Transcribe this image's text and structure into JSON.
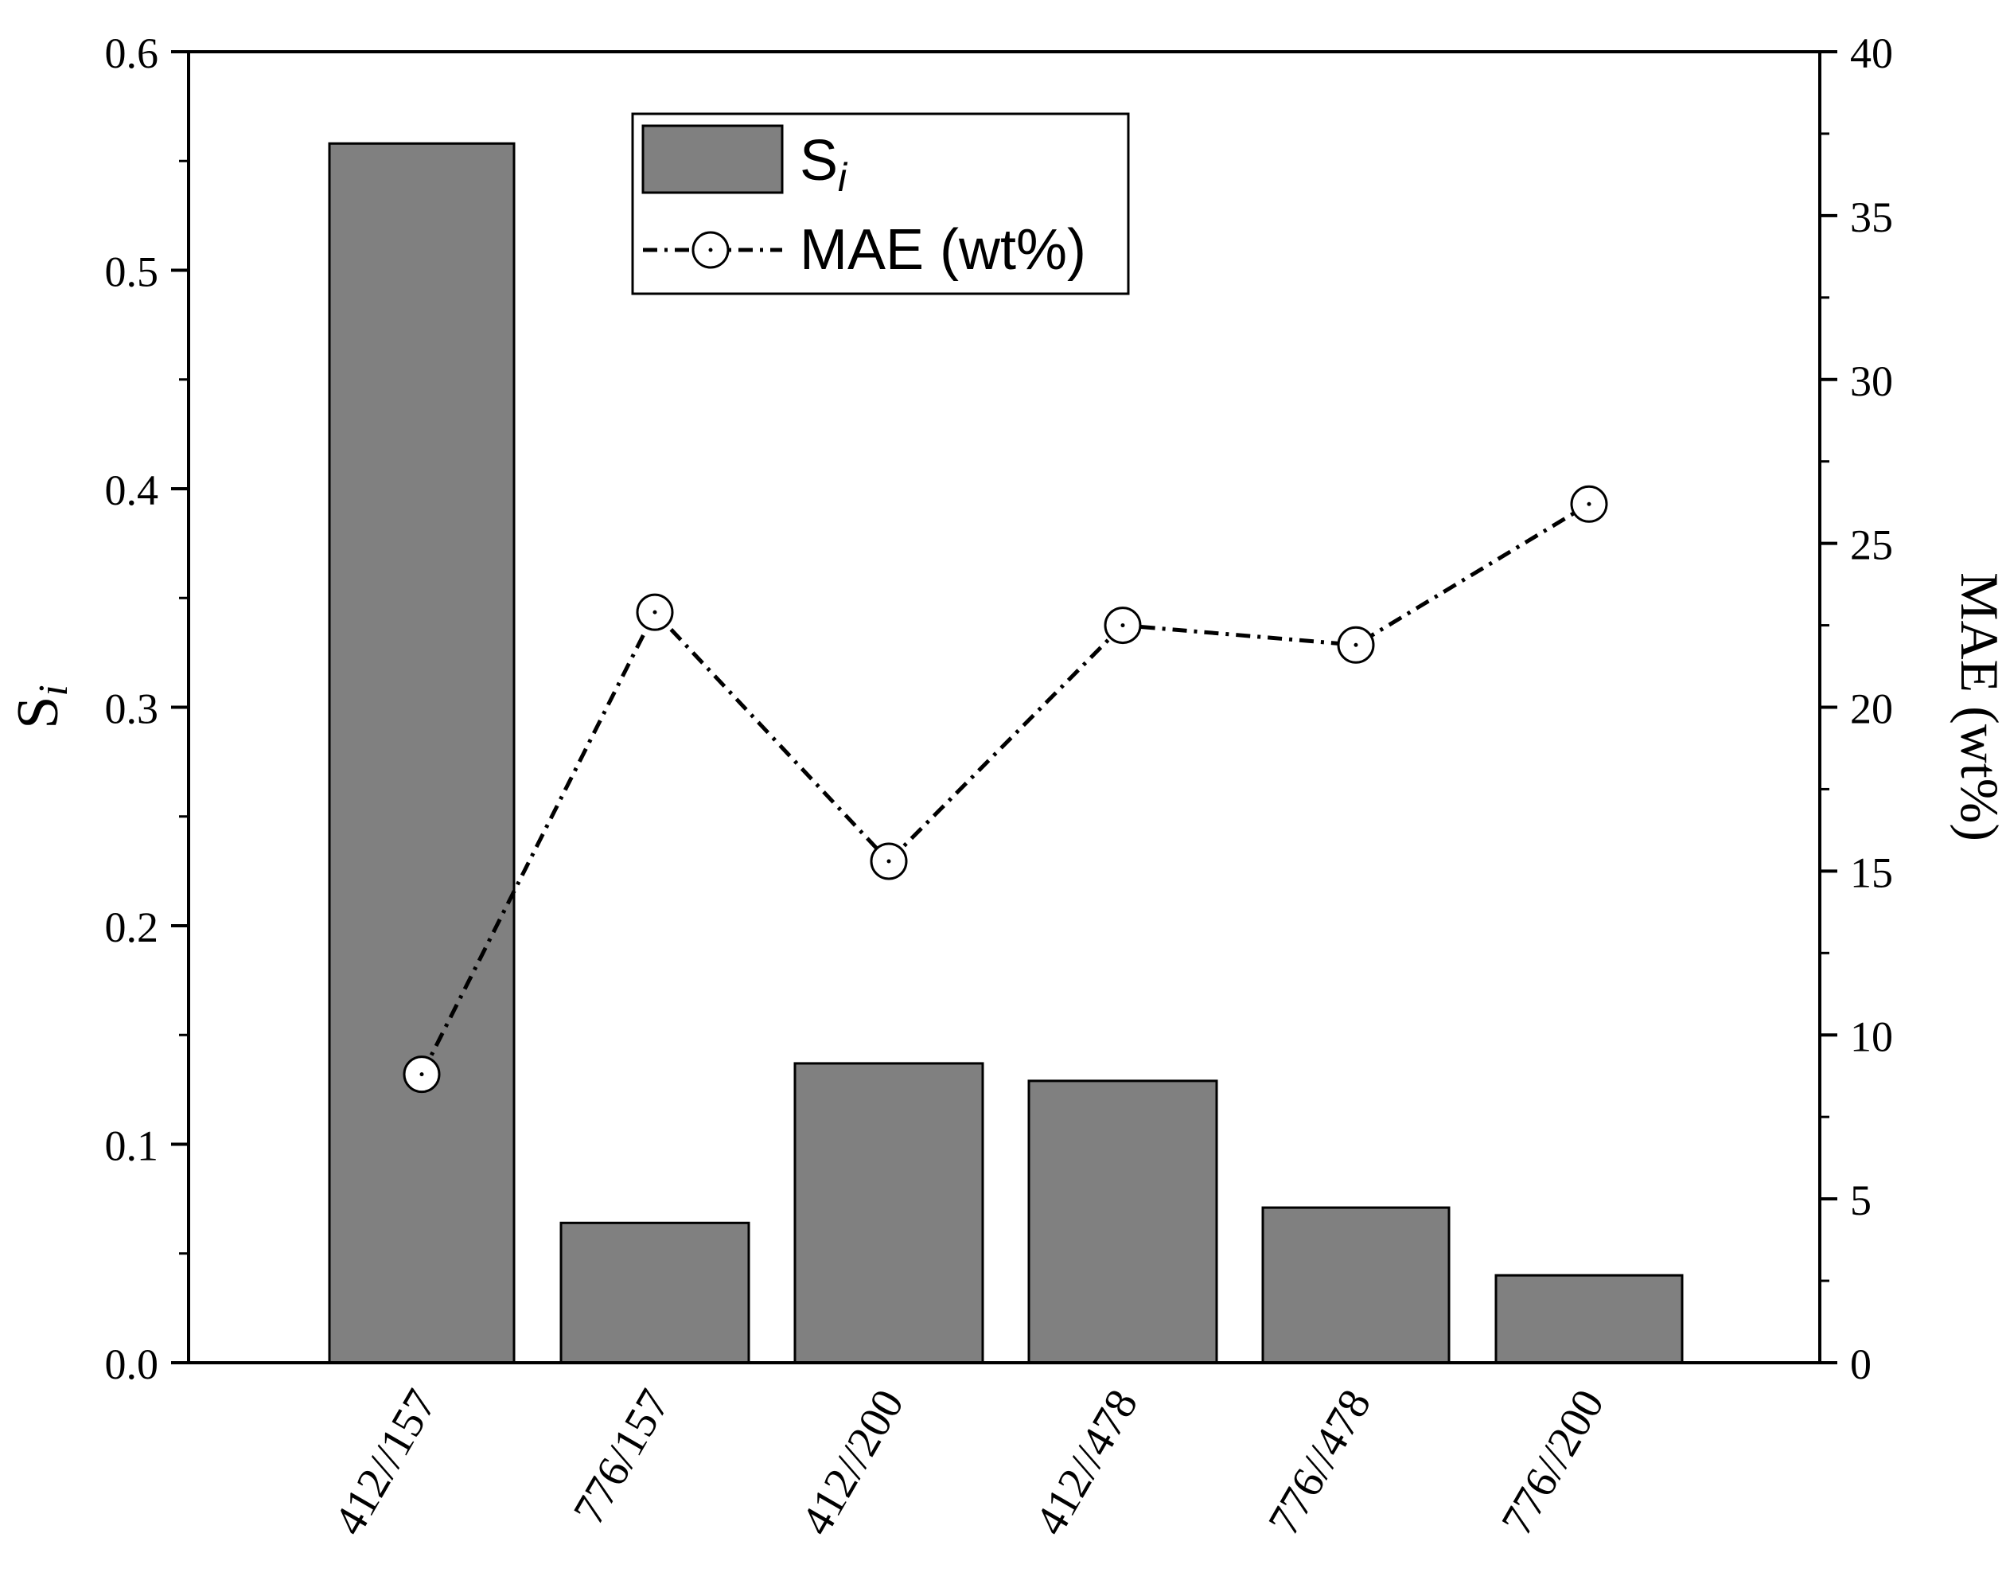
{
  "chart_data": {
    "type": "bar+line",
    "categories": [
      "412//157",
      "776/157",
      "412//200",
      "412//478",
      "776//478",
      "776//200"
    ],
    "series": [
      {
        "name": "S",
        "name_subscript": "i",
        "type": "bar",
        "axis": "left",
        "values": [
          0.558,
          0.064,
          0.137,
          0.129,
          0.071,
          0.04
        ],
        "color": "#808080"
      },
      {
        "name": "MAE (wt%)",
        "type": "line",
        "axis": "right",
        "values": [
          8.8,
          22.9,
          15.3,
          22.5,
          21.9,
          26.2
        ],
        "color": "#000000",
        "line_style": "dash-dot",
        "marker": "open-circle"
      }
    ],
    "ylabel_left": "S",
    "ylabel_left_subscript": "i",
    "ylabel_right": "MAE (wt%)",
    "ylim_left": [
      0,
      0.6
    ],
    "yticks_left": [
      "0.0",
      "0.1",
      "0.2",
      "0.3",
      "0.4",
      "0.5",
      "0.6"
    ],
    "ylim_right": [
      0,
      40
    ],
    "yticks_right": [
      "0",
      "5",
      "10",
      "15",
      "20",
      "25",
      "30",
      "35",
      "40"
    ],
    "legend_position": "top-center",
    "grid": false
  }
}
